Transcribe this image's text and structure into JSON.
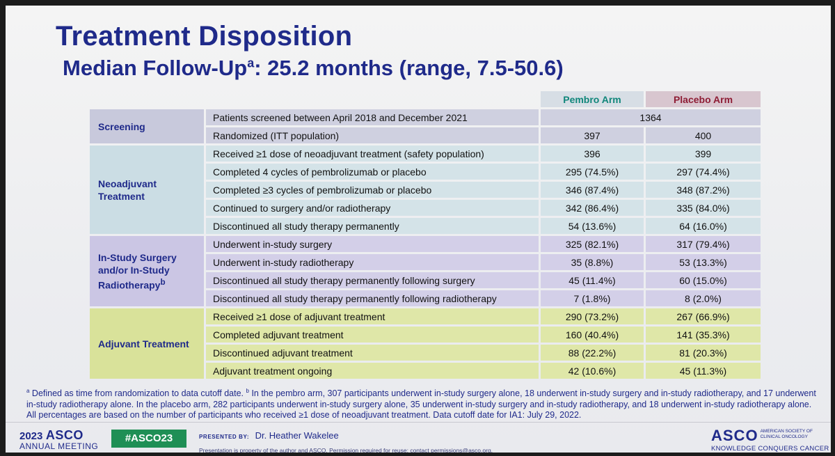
{
  "slide": {
    "title": "Treatment Disposition",
    "subtitle_main": "Median Follow-Up",
    "subtitle_sup": "a",
    "subtitle_rest": ": 25.2 months (range, 7.5-50.6)"
  },
  "table": {
    "header": {
      "pembro": "Pembro Arm",
      "placebo": "Placebo Arm"
    },
    "sections": {
      "screening": {
        "label": "Screening",
        "rows": [
          {
            "desc": "Patients screened between April 2018 and December 2021",
            "combined": "1364"
          },
          {
            "desc": "Randomized (ITT population)",
            "pembro": "397",
            "placebo": "400"
          }
        ]
      },
      "neoadjuvant": {
        "label": "Neoadjuvant Treatment",
        "rows": [
          {
            "desc": "Received ≥1 dose of neoadjuvant treatment (safety population)",
            "pembro": "396",
            "placebo": "399"
          },
          {
            "desc": "Completed 4 cycles of pembrolizumab or placebo",
            "pembro": "295 (74.5%)",
            "placebo": "297 (74.4%)"
          },
          {
            "desc": "Completed ≥3 cycles of pembrolizumab or placebo",
            "pembro": "346 (87.4%)",
            "placebo": "348 (87.2%)"
          },
          {
            "desc": "Continued to surgery and/or radiotherapy",
            "pembro": "342 (86.4%)",
            "placebo": "335 (84.0%)"
          },
          {
            "desc": "Discontinued all study therapy permanently",
            "pembro": "54 (13.6%)",
            "placebo": "64 (16.0%)"
          }
        ]
      },
      "surgery": {
        "label": "In-Study Surgery and/or In-Study Radiotherapy",
        "label_sup": "b",
        "rows": [
          {
            "desc": "Underwent in-study surgery",
            "pembro": "325 (82.1%)",
            "placebo": "317 (79.4%)"
          },
          {
            "desc": "Underwent in-study radiotherapy",
            "pembro": "35 (8.8%)",
            "placebo": "53 (13.3%)"
          },
          {
            "desc": "Discontinued all study therapy permanently following surgery",
            "pembro": "45 (11.4%)",
            "placebo": "60 (15.0%)"
          },
          {
            "desc": "Discontinued all study therapy permanently following radiotherapy",
            "pembro": "7 (1.8%)",
            "placebo": "8 (2.0%)"
          }
        ]
      },
      "adjuvant": {
        "label": "Adjuvant Treatment",
        "rows": [
          {
            "desc": "Received ≥1 dose of adjuvant treatment",
            "pembro": "290 (73.2%)",
            "placebo": "267 (66.9%)"
          },
          {
            "desc": "Completed adjuvant treatment",
            "pembro": "160 (40.4%)",
            "placebo": "141 (35.3%)"
          },
          {
            "desc": "Discontinued adjuvant treatment",
            "pembro": "88 (22.2%)",
            "placebo": "81 (20.3%)"
          },
          {
            "desc": "Adjuvant treatment ongoing",
            "pembro": "42 (10.6%)",
            "placebo": "45 (11.3%)"
          }
        ]
      }
    }
  },
  "footnote": {
    "a_mark": "a",
    "a_text": " Defined as time from randomization to data cutoff date. ",
    "b_mark": "b",
    "b_text": " In the pembro arm, 307 participants underwent in-study surgery alone, 18 underwent in-study surgery and in-study radiotherapy, and 17 underwent in-study radiotherapy alone. In the placebo arm, 282 participants underwent in-study surgery alone, 35 underwent in-study surgery and in-study radiotherapy, and 18 underwent in-study radiotherapy alone. All percentages are based on the number of participants who received ≥1 dose of neoadjuvant treatment. Data cutoff date for IA1: July 29, 2022."
  },
  "footer": {
    "year": "2023",
    "meeting_name": "ASCO",
    "meeting_sub": "ANNUAL MEETING",
    "hashtag": "#ASCO23",
    "presented_label": "PRESENTED BY:",
    "presenter": "Dr. Heather Wakelee",
    "property_note": "Presentation is property of the author and ASCO. Permission required for reuse; contact permissions@asco.org.",
    "logo_name": "ASCO",
    "logo_society": "AMERICAN SOCIETY OF CLINICAL ONCOLOGY",
    "logo_tagline": "KNOWLEDGE CONQUERS CANCER"
  },
  "colors": {
    "title": "#1f2a8a",
    "pembro_header": "#10867a",
    "placebo_header": "#8e1d35",
    "screening_bg": "#cfd0e0",
    "neoadjuvant_bg": "#d4e3e8",
    "surgery_bg": "#d3cfe8",
    "adjuvant_bg": "#dfe7a8",
    "hashtag_bg": "#1f8f55"
  }
}
